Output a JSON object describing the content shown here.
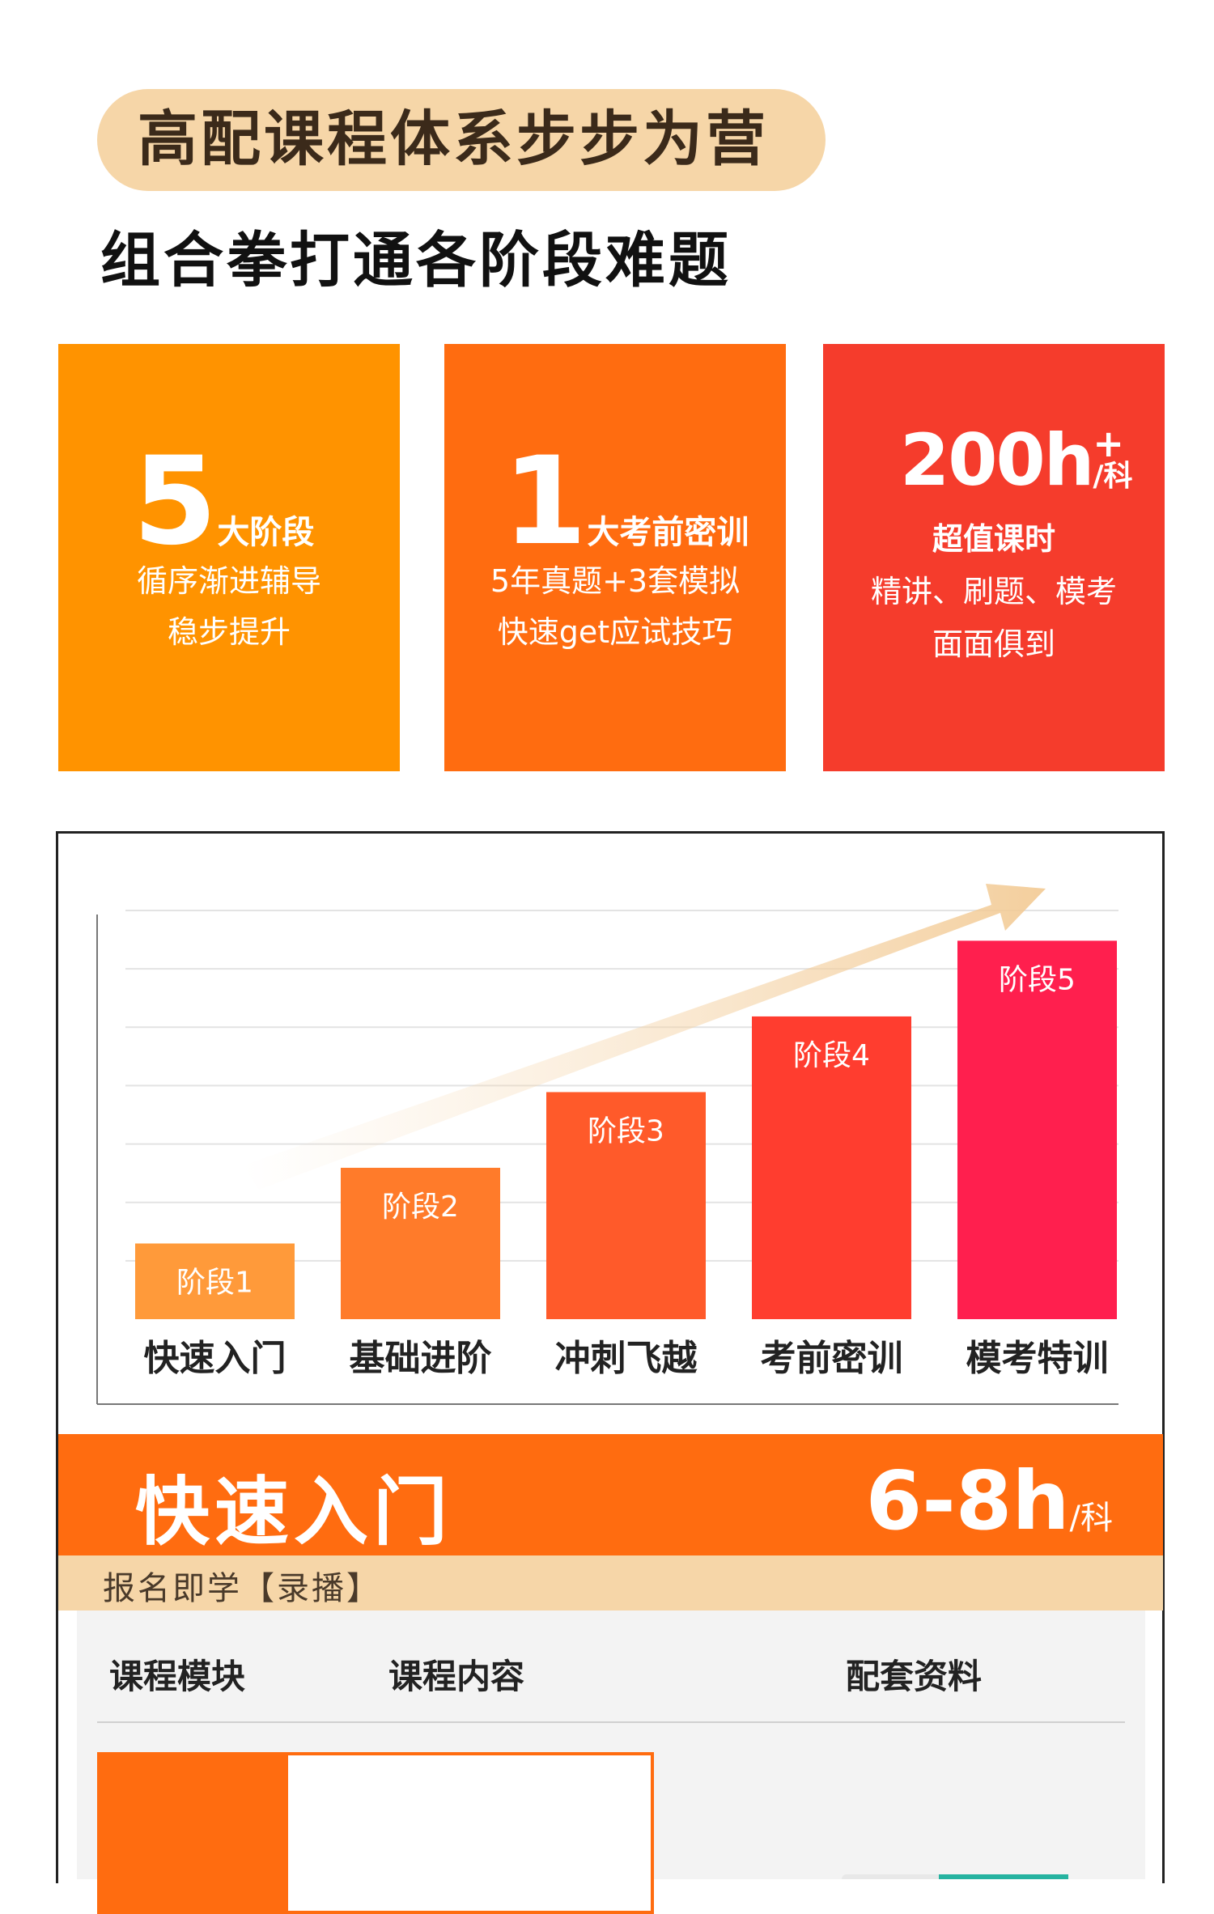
{
  "headline": "高配课程体系步步为营",
  "subheadline": "组合拳打通各阶段难题",
  "cards": [
    {
      "number": "5",
      "number_suffix": "大阶段",
      "lines": [
        "循序渐进辅导",
        "稳步提升"
      ],
      "color": "#ff9300"
    },
    {
      "number": "1",
      "number_suffix": "大考前密训",
      "lines": [
        "5年真题+3套模拟",
        "快速get应试技巧"
      ],
      "color": "#ff6c10"
    },
    {
      "number": "200h",
      "number_sup": "+",
      "number_unit": "/科",
      "lines": [
        "超值课时",
        "精讲、刷题、模考",
        "面面俱到"
      ],
      "color": "#f53c2c"
    }
  ],
  "chart_data": {
    "type": "bar",
    "categories": [
      "快速入门",
      "基础进阶",
      "冲刺飞越",
      "考前密训",
      "模考特训"
    ],
    "bar_labels": [
      "阶段1",
      "阶段2",
      "阶段3",
      "阶段4",
      "阶段5"
    ],
    "values": [
      1,
      2,
      3,
      4,
      5
    ],
    "colors": [
      "#ff9a3a",
      "#ff7b2a",
      "#ff5a2a",
      "#ff3d2f",
      "#ff1f4e"
    ],
    "ylim": [
      0,
      5.4
    ],
    "grid": true,
    "trend_arrow": true
  },
  "stage": {
    "title": "快速入门",
    "hours": "6-8h",
    "hours_unit": "/科",
    "subtitle": "报名即学【录播】"
  },
  "table": {
    "headers": [
      "课程模块",
      "课程内容",
      "配套资料"
    ]
  }
}
